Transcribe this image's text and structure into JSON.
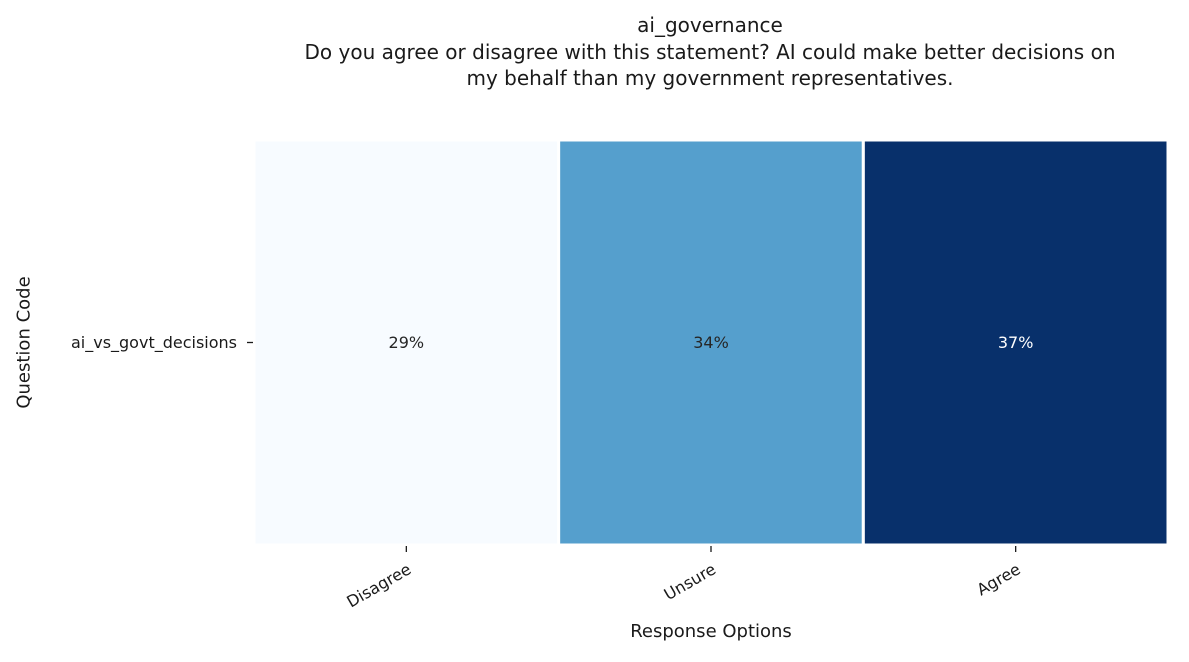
{
  "chart_data": {
    "type": "heatmap",
    "title": "ai_governance",
    "subtitle_lines": [
      "Do you agree or disagree with this statement? AI could make better decisions on",
      "my behalf than my government representatives."
    ],
    "xlabel": "Response Options",
    "ylabel": "Question Code",
    "x_categories": [
      "Disagree",
      "Unsure",
      "Agree"
    ],
    "y_categories": [
      "ai_vs_govt_decisions"
    ],
    "values": [
      [
        29,
        34,
        37
      ]
    ],
    "value_labels": [
      [
        "29%",
        "34%",
        "37%"
      ]
    ],
    "colormap": "Blues",
    "color_range": [
      29,
      37
    ],
    "cell_colors": [
      [
        "#f7fbff",
        "#559fcd",
        "#08306b"
      ]
    ],
    "cell_border_color": "#ffffff",
    "grid": false,
    "legend": "none"
  }
}
